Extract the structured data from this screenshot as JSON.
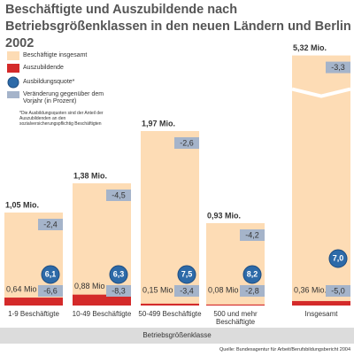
{
  "chart_data": {
    "type": "bar",
    "title": "Beschäftigte und Auszubildende nach Betriebsgrößenklassen in den neuen Ländern und Berlin 2002",
    "categories": [
      "1-9 Beschäftigte",
      "10-49 Beschäftigte",
      "50-499 Beschäftigte",
      "500 und mehr Beschäftigte",
      "Insgesamt"
    ],
    "series": [
      {
        "name": "Beschäftigte insgesamt",
        "color": "#fddcb5",
        "values": [
          1.05,
          1.38,
          1.97,
          0.93,
          5.32
        ],
        "value_labels": [
          "1,05 Mio.",
          "1,38 Mio.",
          "1,97 Mio.",
          "0,93 Mio.",
          "5,32 Mio."
        ],
        "change_values": [
          -2.4,
          -4.5,
          -2.6,
          -4.2,
          -3.3
        ],
        "change_labels": [
          "-2,4",
          "-4,5",
          "-2,6",
          "-4,2",
          "-3,3"
        ]
      },
      {
        "name": "Auszubildende",
        "color": "#d42a2a",
        "values": [
          0.64,
          0.88,
          0.15,
          0.08,
          0.36
        ],
        "value_labels": [
          "0,64 Mio",
          "0,88 Mio",
          "0,15 Mio",
          "0,08 Mio",
          "0,36 Mio."
        ],
        "change_values": [
          -6.6,
          -8.3,
          -3.4,
          -2.8,
          -5.0
        ],
        "change_labels": [
          "-6,6",
          "-8,3",
          "-3,4",
          "-2,8",
          "-5,0"
        ]
      },
      {
        "name": "Ausbildungsquote*",
        "color": "#2d6aa8",
        "values": [
          6.1,
          6.3,
          7.5,
          8.2,
          7.0
        ],
        "value_labels": [
          "6,1",
          "6,3",
          "7,5",
          "8,2",
          "7,0"
        ]
      }
    ],
    "change": {
      "name": "Veränderung gegenüber dem Vorjahr (in Prozent)",
      "color": "#a5b4ca"
    },
    "footnote": "*Die Ausbildungsquoten sind der Anteil der Auszubildenden an den sozialversicherungspflichtig Beschäftigten",
    "x_label": "Betriebsgrößenklasse",
    "source": "Quelle: Bundesagentur für Arbeit/Berufsbildungsbericht 2004"
  }
}
